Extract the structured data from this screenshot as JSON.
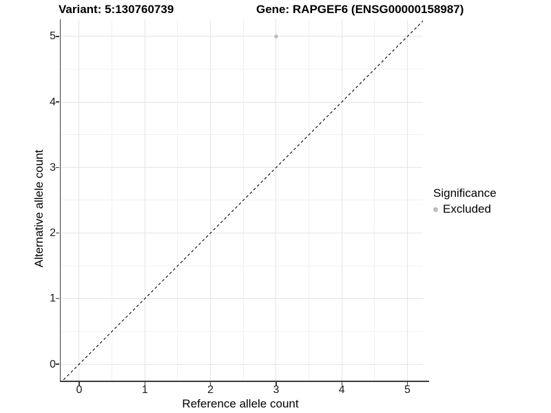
{
  "header": {
    "variant_title": "Variant: 5:130760739",
    "gene_title": "Gene: RAPGEF6 (ENSG00000158987)"
  },
  "legend": {
    "title": "Significance",
    "items": [
      {
        "label": "Excluded",
        "color": "#bcbcbc"
      }
    ]
  },
  "chart_data": {
    "type": "scatter",
    "title": "Variant: 5:130760739 — Gene: RAPGEF6 (ENSG00000158987)",
    "xlabel": "Reference allele count",
    "ylabel": "Alternative allele count",
    "xlim": [
      -0.283,
      5.236
    ],
    "ylim": [
      -0.252,
      5.262
    ],
    "x_ticks": [
      0,
      1,
      2,
      3,
      4,
      5
    ],
    "y_ticks": [
      0,
      1,
      2,
      3,
      4,
      5
    ],
    "grid": {
      "major": true,
      "minor": true,
      "major_color": "#e4e4e4",
      "minor_color": "#f1f1f1"
    },
    "legend_position": "right",
    "series": [
      {
        "name": "Excluded",
        "marker": "circle",
        "color": "#bcbcbc",
        "points": [
          [
            3,
            5
          ]
        ]
      }
    ],
    "reference_line": {
      "equation": "y = x",
      "style": "dashed",
      "color": "#000000",
      "from": [
        -0.35,
        -0.35
      ],
      "to": [
        5.35,
        5.35
      ]
    },
    "colors": {
      "background": "#ffffff",
      "axis_line": "#3a3a3a",
      "tick_text": "#1a1a1a"
    }
  }
}
